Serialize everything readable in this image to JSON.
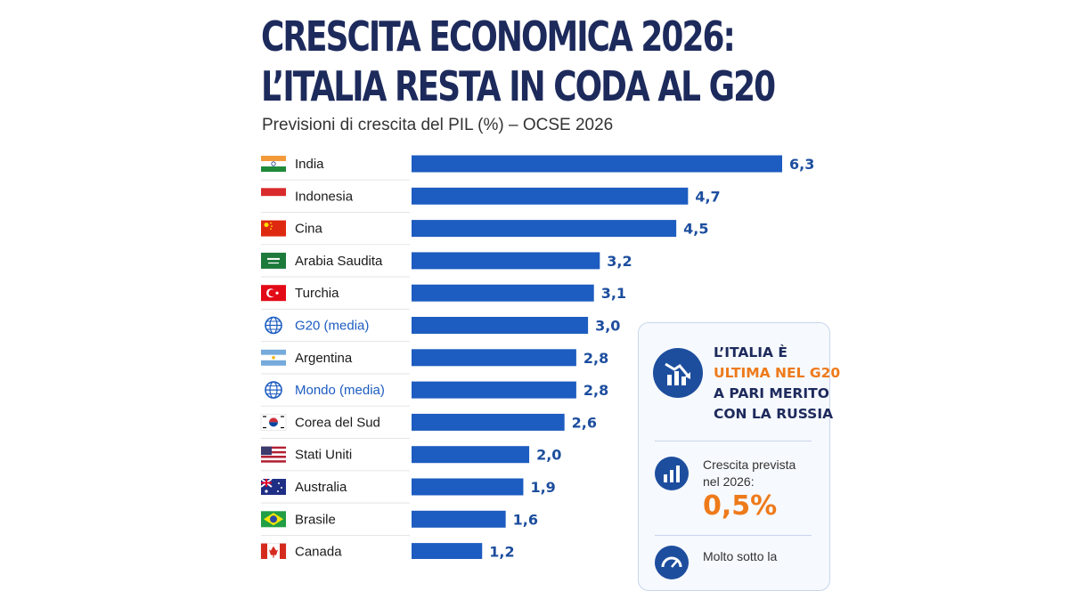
{
  "header": {
    "title_line1": "CRESCITA ECONOMICA 2026:",
    "title_line2": "L’ITALIA RESTA IN CODA AL G20",
    "subtitle": "Previsioni di crescita del PIL (%) – OCSE 2026"
  },
  "chart_data": {
    "type": "bar",
    "orientation": "horizontal",
    "categories": [
      "India",
      "Indonesia",
      "Cina",
      "Arabia Saudita",
      "Turchia",
      "G20 (media)",
      "Argentina",
      "Mondo (media)",
      "Corea del Sud",
      "Stati Uniti",
      "Australia",
      "Brasile",
      "Canada"
    ],
    "values": [
      6.3,
      4.7,
      4.5,
      3.2,
      3.1,
      3.0,
      2.8,
      2.8,
      2.6,
      2.0,
      1.9,
      1.6,
      1.2
    ],
    "value_labels": [
      "6,3",
      "4,7",
      "4,5",
      "3,2",
      "3,1",
      "3,0",
      "2,8",
      "2,8",
      "2,6",
      "2,0",
      "1,9",
      "1,6",
      "1,2"
    ],
    "title": "CRESCITA ECONOMICA 2026: L’ITALIA RESTA IN CODA AL G20",
    "subtitle": "Previsioni di crescita del PIL (%) – OCSE 2026",
    "xlabel": "",
    "ylabel": "",
    "xlim": [
      0,
      6.3
    ],
    "grid": false,
    "highlighted_categories": [
      "G20 (media)",
      "Mondo (media)"
    ],
    "colors": {
      "bar": "#1d5cc0",
      "value": "#1d4e9e",
      "label": "#1a1a1a",
      "highlight": "#1d5cc0"
    }
  },
  "flags": [
    "flag-india",
    "flag-indonesia",
    "flag-china",
    "flag-saudi-arabia",
    "flag-turkey",
    "globe-icon",
    "flag-argentina",
    "globe-icon",
    "flag-south-korea",
    "flag-usa",
    "flag-australia",
    "flag-brazil",
    "flag-canada"
  ],
  "callout": {
    "headline_1": "L’ITALIA È",
    "headline_2": "ULTIMA NEL G20",
    "headline_3": "A PARI MERITO",
    "headline_4": "CON LA RUSSIA",
    "growth_label_1": "Crescita prevista",
    "growth_label_2": "nel 2026:",
    "growth_value": "0,5%",
    "note_1": "Molto sotto la",
    "icons": [
      "declining-chart-icon",
      "bar-chart-icon",
      "gauge-icon"
    ],
    "colors": {
      "accent": "#ee7a1a",
      "navy": "#1d2a5c",
      "icon_bg": "#1d4e9e"
    }
  }
}
